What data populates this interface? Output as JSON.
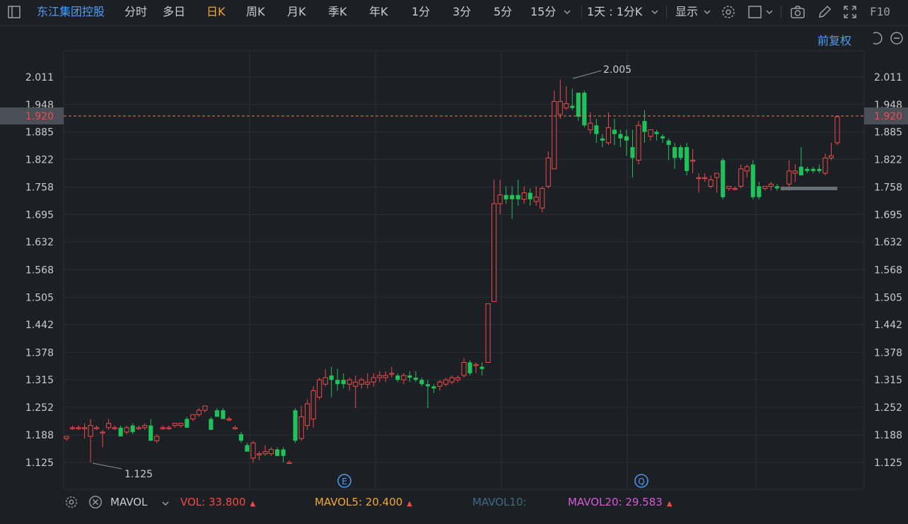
{
  "toolbar": {
    "stock_name": "东江集团控股",
    "periods": [
      "分时",
      "多日",
      "日K",
      "周K",
      "月K",
      "季K",
      "年K",
      "1分",
      "3分",
      "5分",
      "15分"
    ],
    "active_period": "日K",
    "multi_period": "1天 : 1分K",
    "display": "显示",
    "f10": "F10"
  },
  "adjust": "前复权",
  "price_axis": {
    "ticks": [
      "2.011",
      "1.948",
      "1.885",
      "1.822",
      "1.758",
      "1.695",
      "1.632",
      "1.568",
      "1.505",
      "1.442",
      "1.378",
      "1.315",
      "1.252",
      "1.188",
      "1.125"
    ],
    "current_price": "1.920",
    "high_label": "2.005",
    "low_label": "1.125"
  },
  "event_markers": [
    "E",
    "Q"
  ],
  "indicator": {
    "name": "MAVOL",
    "vol_label": "VOL:",
    "vol_value": "33.800",
    "mavol5_label": "MAVOL5:",
    "mavol5_value": "20.400",
    "mavol10_label": "MAVOL10:",
    "mavol20_label": "MAVOL20:",
    "mavol20_value": "29.583"
  },
  "colors": {
    "up": "#f04a4a",
    "down": "#1fc15a",
    "accent": "#f0a93a",
    "link": "#4e9cf5",
    "mavol5": "#f0a93a",
    "mavol10": "#3e6a82",
    "mavol20": "#d45cd6"
  },
  "chart_data": {
    "type": "candlestick",
    "ylim": [
      1.12,
      2.02
    ],
    "candles": [
      {
        "o": 1.18,
        "h": 1.185,
        "l": 1.175,
        "c": 1.185
      },
      {
        "o": 1.205,
        "h": 1.21,
        "l": 1.2,
        "c": 1.205
      },
      {
        "o": 1.205,
        "h": 1.21,
        "l": 1.2,
        "c": 1.205
      },
      {
        "o": 1.205,
        "h": 1.215,
        "l": 1.18,
        "c": 1.205
      },
      {
        "o": 1.185,
        "h": 1.225,
        "l": 1.125,
        "c": 1.21
      },
      {
        "o": 1.205,
        "h": 1.21,
        "l": 1.2,
        "c": 1.205
      },
      {
        "o": 1.195,
        "h": 1.2,
        "l": 1.16,
        "c": 1.195
      },
      {
        "o": 1.205,
        "h": 1.225,
        "l": 1.2,
        "c": 1.215
      },
      {
        "o": 1.205,
        "h": 1.21,
        "l": 1.2,
        "c": 1.205
      },
      {
        "o": 1.205,
        "h": 1.21,
        "l": 1.185,
        "c": 1.185
      },
      {
        "o": 1.195,
        "h": 1.21,
        "l": 1.19,
        "c": 1.205
      },
      {
        "o": 1.21,
        "h": 1.215,
        "l": 1.19,
        "c": 1.195
      },
      {
        "o": 1.205,
        "h": 1.21,
        "l": 1.2,
        "c": 1.205
      },
      {
        "o": 1.205,
        "h": 1.215,
        "l": 1.2,
        "c": 1.21
      },
      {
        "o": 1.21,
        "h": 1.225,
        "l": 1.175,
        "c": 1.175
      },
      {
        "o": 1.175,
        "h": 1.19,
        "l": 1.17,
        "c": 1.185
      },
      {
        "o": 1.205,
        "h": 1.21,
        "l": 1.2,
        "c": 1.205
      },
      {
        "o": 1.205,
        "h": 1.21,
        "l": 1.2,
        "c": 1.205
      },
      {
        "o": 1.21,
        "h": 1.215,
        "l": 1.205,
        "c": 1.215
      },
      {
        "o": 1.21,
        "h": 1.215,
        "l": 1.205,
        "c": 1.215
      },
      {
        "o": 1.225,
        "h": 1.23,
        "l": 1.205,
        "c": 1.205
      },
      {
        "o": 1.225,
        "h": 1.235,
        "l": 1.22,
        "c": 1.235
      },
      {
        "o": 1.235,
        "h": 1.25,
        "l": 1.23,
        "c": 1.245
      },
      {
        "o": 1.245,
        "h": 1.255,
        "l": 1.24,
        "c": 1.255
      },
      {
        "o": 1.225,
        "h": 1.23,
        "l": 1.2,
        "c": 1.2
      },
      {
        "o": 1.245,
        "h": 1.25,
        "l": 1.23,
        "c": 1.23
      },
      {
        "o": 1.245,
        "h": 1.25,
        "l": 1.225,
        "c": 1.225
      },
      {
        "o": 1.225,
        "h": 1.23,
        "l": 1.22,
        "c": 1.225
      },
      {
        "o": 1.205,
        "h": 1.21,
        "l": 1.2,
        "c": 1.205
      },
      {
        "o": 1.19,
        "h": 1.195,
        "l": 1.17,
        "c": 1.175
      },
      {
        "o": 1.165,
        "h": 1.17,
        "l": 1.15,
        "c": 1.15
      },
      {
        "o": 1.135,
        "h": 1.175,
        "l": 1.125,
        "c": 1.17
      },
      {
        "o": 1.145,
        "h": 1.15,
        "l": 1.13,
        "c": 1.145
      },
      {
        "o": 1.145,
        "h": 1.165,
        "l": 1.14,
        "c": 1.15
      },
      {
        "o": 1.145,
        "h": 1.16,
        "l": 1.14,
        "c": 1.155
      },
      {
        "o": 1.155,
        "h": 1.16,
        "l": 1.14,
        "c": 1.14
      },
      {
        "o": 1.155,
        "h": 1.16,
        "l": 1.125,
        "c": 1.14
      },
      {
        "o": 1.125,
        "h": 1.13,
        "l": 1.125,
        "c": 1.125
      },
      {
        "o": 1.245,
        "h": 1.25,
        "l": 1.17,
        "c": 1.175
      },
      {
        "o": 1.18,
        "h": 1.255,
        "l": 1.175,
        "c": 1.23
      },
      {
        "o": 1.21,
        "h": 1.27,
        "l": 1.2,
        "c": 1.26
      },
      {
        "o": 1.225,
        "h": 1.3,
        "l": 1.205,
        "c": 1.29
      },
      {
        "o": 1.275,
        "h": 1.32,
        "l": 1.27,
        "c": 1.315
      },
      {
        "o": 1.305,
        "h": 1.34,
        "l": 1.3,
        "c": 1.32
      },
      {
        "o": 1.325,
        "h": 1.345,
        "l": 1.275,
        "c": 1.315
      },
      {
        "o": 1.315,
        "h": 1.34,
        "l": 1.29,
        "c": 1.305
      },
      {
        "o": 1.315,
        "h": 1.33,
        "l": 1.295,
        "c": 1.305
      },
      {
        "o": 1.305,
        "h": 1.32,
        "l": 1.29,
        "c": 1.315
      },
      {
        "o": 1.3,
        "h": 1.325,
        "l": 1.25,
        "c": 1.31
      },
      {
        "o": 1.305,
        "h": 1.32,
        "l": 1.295,
        "c": 1.315
      },
      {
        "o": 1.305,
        "h": 1.33,
        "l": 1.295,
        "c": 1.31
      },
      {
        "o": 1.31,
        "h": 1.33,
        "l": 1.3,
        "c": 1.32
      },
      {
        "o": 1.32,
        "h": 1.335,
        "l": 1.31,
        "c": 1.325
      },
      {
        "o": 1.32,
        "h": 1.335,
        "l": 1.31,
        "c": 1.325
      },
      {
        "o": 1.33,
        "h": 1.345,
        "l": 1.32,
        "c": 1.33
      },
      {
        "o": 1.325,
        "h": 1.33,
        "l": 1.31,
        "c": 1.315
      },
      {
        "o": 1.315,
        "h": 1.33,
        "l": 1.305,
        "c": 1.325
      },
      {
        "o": 1.325,
        "h": 1.335,
        "l": 1.31,
        "c": 1.32
      },
      {
        "o": 1.32,
        "h": 1.335,
        "l": 1.31,
        "c": 1.315
      },
      {
        "o": 1.315,
        "h": 1.32,
        "l": 1.3,
        "c": 1.305
      },
      {
        "o": 1.305,
        "h": 1.315,
        "l": 1.25,
        "c": 1.3
      },
      {
        "o": 1.3,
        "h": 1.305,
        "l": 1.285,
        "c": 1.295
      },
      {
        "o": 1.3,
        "h": 1.315,
        "l": 1.29,
        "c": 1.31
      },
      {
        "o": 1.305,
        "h": 1.32,
        "l": 1.3,
        "c": 1.315
      },
      {
        "o": 1.31,
        "h": 1.325,
        "l": 1.305,
        "c": 1.32
      },
      {
        "o": 1.315,
        "h": 1.325,
        "l": 1.31,
        "c": 1.32
      },
      {
        "o": 1.325,
        "h": 1.365,
        "l": 1.32,
        "c": 1.355
      },
      {
        "o": 1.355,
        "h": 1.36,
        "l": 1.325,
        "c": 1.33
      },
      {
        "o": 1.35,
        "h": 1.355,
        "l": 1.33,
        "c": 1.35
      },
      {
        "o": 1.345,
        "h": 1.355,
        "l": 1.325,
        "c": 1.34
      },
      {
        "o": 1.355,
        "h": 1.485,
        "l": 1.355,
        "c": 1.49
      },
      {
        "o": 1.495,
        "h": 1.775,
        "l": 1.495,
        "c": 1.72
      },
      {
        "o": 1.72,
        "h": 1.775,
        "l": 1.695,
        "c": 1.74
      },
      {
        "o": 1.74,
        "h": 1.76,
        "l": 1.72,
        "c": 1.73
      },
      {
        "o": 1.74,
        "h": 1.76,
        "l": 1.685,
        "c": 1.73
      },
      {
        "o": 1.74,
        "h": 1.775,
        "l": 1.715,
        "c": 1.73
      },
      {
        "o": 1.73,
        "h": 1.76,
        "l": 1.72,
        "c": 1.745
      },
      {
        "o": 1.745,
        "h": 1.755,
        "l": 1.715,
        "c": 1.73
      },
      {
        "o": 1.725,
        "h": 1.76,
        "l": 1.715,
        "c": 1.735
      },
      {
        "o": 1.71,
        "h": 1.76,
        "l": 1.7,
        "c": 1.755
      },
      {
        "o": 1.76,
        "h": 1.84,
        "l": 1.755,
        "c": 1.825
      },
      {
        "o": 1.8,
        "h": 1.98,
        "l": 1.8,
        "c": 1.955
      },
      {
        "o": 1.925,
        "h": 2.005,
        "l": 1.915,
        "c": 1.955
      },
      {
        "o": 1.94,
        "h": 1.99,
        "l": 1.935,
        "c": 1.95
      },
      {
        "o": 1.945,
        "h": 1.985,
        "l": 1.935,
        "c": 1.94
      },
      {
        "o": 1.975,
        "h": 1.975,
        "l": 1.91,
        "c": 1.92
      },
      {
        "o": 1.975,
        "h": 1.98,
        "l": 1.895,
        "c": 1.9
      },
      {
        "o": 1.89,
        "h": 1.93,
        "l": 1.88,
        "c": 1.905
      },
      {
        "o": 1.9,
        "h": 1.915,
        "l": 1.86,
        "c": 1.88
      },
      {
        "o": 1.87,
        "h": 1.88,
        "l": 1.85,
        "c": 1.865
      },
      {
        "o": 1.86,
        "h": 1.93,
        "l": 1.855,
        "c": 1.895
      },
      {
        "o": 1.89,
        "h": 1.915,
        "l": 1.855,
        "c": 1.88
      },
      {
        "o": 1.88,
        "h": 1.89,
        "l": 1.85,
        "c": 1.87
      },
      {
        "o": 1.875,
        "h": 1.89,
        "l": 1.83,
        "c": 1.865
      },
      {
        "o": 1.85,
        "h": 1.89,
        "l": 1.78,
        "c": 1.825
      },
      {
        "o": 1.82,
        "h": 1.91,
        "l": 1.81,
        "c": 1.9
      },
      {
        "o": 1.91,
        "h": 1.935,
        "l": 1.86,
        "c": 1.885
      },
      {
        "o": 1.875,
        "h": 1.89,
        "l": 1.865,
        "c": 1.89
      },
      {
        "o": 1.885,
        "h": 1.89,
        "l": 1.865,
        "c": 1.88
      },
      {
        "o": 1.875,
        "h": 1.88,
        "l": 1.86,
        "c": 1.87
      },
      {
        "o": 1.865,
        "h": 1.87,
        "l": 1.82,
        "c": 1.855
      },
      {
        "o": 1.85,
        "h": 1.86,
        "l": 1.8,
        "c": 1.825
      },
      {
        "o": 1.85,
        "h": 1.855,
        "l": 1.82,
        "c": 1.825
      },
      {
        "o": 1.85,
        "h": 1.86,
        "l": 1.785,
        "c": 1.795
      },
      {
        "o": 1.82,
        "h": 1.845,
        "l": 1.79,
        "c": 1.82
      },
      {
        "o": 1.78,
        "h": 1.79,
        "l": 1.745,
        "c": 1.78
      },
      {
        "o": 1.78,
        "h": 1.79,
        "l": 1.77,
        "c": 1.78
      },
      {
        "o": 1.76,
        "h": 1.785,
        "l": 1.755,
        "c": 1.775
      },
      {
        "o": 1.78,
        "h": 1.79,
        "l": 1.745,
        "c": 1.79
      },
      {
        "o": 1.82,
        "h": 1.825,
        "l": 1.73,
        "c": 1.735
      },
      {
        "o": 1.755,
        "h": 1.76,
        "l": 1.75,
        "c": 1.76
      },
      {
        "o": 1.755,
        "h": 1.76,
        "l": 1.75,
        "c": 1.755
      },
      {
        "o": 1.76,
        "h": 1.81,
        "l": 1.755,
        "c": 1.8
      },
      {
        "o": 1.795,
        "h": 1.81,
        "l": 1.78,
        "c": 1.805
      },
      {
        "o": 1.81,
        "h": 1.82,
        "l": 1.73,
        "c": 1.735
      },
      {
        "o": 1.76,
        "h": 1.77,
        "l": 1.73,
        "c": 1.735
      },
      {
        "o": 1.755,
        "h": 1.76,
        "l": 1.75,
        "c": 1.76
      },
      {
        "o": 1.76,
        "h": 1.77,
        "l": 1.75,
        "c": 1.765
      },
      {
        "o": 1.76,
        "h": 1.765,
        "l": 1.75,
        "c": 1.755
      },
      {
        "o": 1.755,
        "h": 1.76,
        "l": 1.75,
        "c": 1.755
      },
      {
        "o": 1.765,
        "h": 1.82,
        "l": 1.75,
        "c": 1.795
      },
      {
        "o": 1.79,
        "h": 1.81,
        "l": 1.77,
        "c": 1.795
      },
      {
        "o": 1.805,
        "h": 1.85,
        "l": 1.79,
        "c": 1.785
      },
      {
        "o": 1.8,
        "h": 1.805,
        "l": 1.79,
        "c": 1.795
      },
      {
        "o": 1.8,
        "h": 1.805,
        "l": 1.79,
        "c": 1.795
      },
      {
        "o": 1.8,
        "h": 1.81,
        "l": 1.79,
        "c": 1.795
      },
      {
        "o": 1.79,
        "h": 1.835,
        "l": 1.785,
        "c": 1.825
      },
      {
        "o": 1.825,
        "h": 1.86,
        "l": 1.82,
        "c": 1.83
      },
      {
        "o": 1.86,
        "h": 1.92,
        "l": 1.855,
        "c": 1.92
      }
    ]
  }
}
